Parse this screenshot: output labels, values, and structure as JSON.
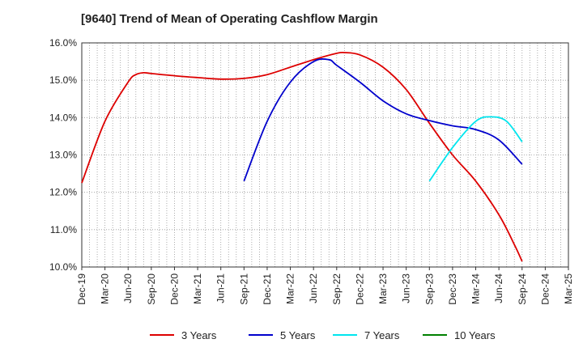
{
  "chart_data": {
    "type": "line",
    "title": "[9640]  Trend of Mean of Operating Cashflow Margin",
    "xlabel": "",
    "ylabel": "",
    "ylim": [
      10.0,
      16.0
    ],
    "y_ticks": [
      "10.0%",
      "11.0%",
      "12.0%",
      "13.0%",
      "14.0%",
      "15.0%",
      "16.0%"
    ],
    "x_ticks": [
      "Dec-19",
      "Mar-20",
      "Jun-20",
      "Sep-20",
      "Dec-20",
      "Mar-21",
      "Jun-21",
      "Sep-21",
      "Dec-21",
      "Mar-22",
      "Jun-22",
      "Sep-22",
      "Dec-22",
      "Mar-23",
      "Jun-23",
      "Sep-23",
      "Dec-23",
      "Mar-24",
      "Jun-24",
      "Sep-24",
      "Dec-24",
      "Mar-25"
    ],
    "grid": true,
    "legend_position": "bottom",
    "series": [
      {
        "name": "3 Years",
        "color": "#dd0000",
        "points": [
          [
            "Dec-19",
            12.25
          ],
          [
            "Mar-20",
            13.9
          ],
          [
            "Jun-20",
            14.95
          ],
          [
            "Jul-20",
            15.15
          ],
          [
            "Aug-20",
            15.2
          ],
          [
            "Sep-20",
            15.18
          ],
          [
            "Dec-20",
            15.12
          ],
          [
            "Mar-21",
            15.07
          ],
          [
            "Jun-21",
            15.03
          ],
          [
            "Sep-21",
            15.05
          ],
          [
            "Dec-21",
            15.15
          ],
          [
            "Mar-22",
            15.35
          ],
          [
            "Jun-22",
            15.55
          ],
          [
            "Sep-22",
            15.72
          ],
          [
            "Oct-22",
            15.74
          ],
          [
            "Dec-22",
            15.68
          ],
          [
            "Mar-23",
            15.35
          ],
          [
            "Jun-23",
            14.75
          ],
          [
            "Sep-23",
            13.85
          ],
          [
            "Dec-23",
            13.0
          ],
          [
            "Mar-24",
            12.3
          ],
          [
            "Jun-24",
            11.4
          ],
          [
            "Aug-24",
            10.6
          ],
          [
            "Sep-24",
            10.15
          ]
        ]
      },
      {
        "name": "5 Years",
        "color": "#0000cc",
        "points": [
          [
            "Sep-21",
            12.3
          ],
          [
            "Dec-21",
            13.9
          ],
          [
            "Mar-22",
            14.95
          ],
          [
            "Jun-22",
            15.5
          ],
          [
            "Aug-22",
            15.55
          ],
          [
            "Sep-22",
            15.4
          ],
          [
            "Dec-22",
            14.95
          ],
          [
            "Mar-23",
            14.45
          ],
          [
            "Jun-23",
            14.1
          ],
          [
            "Sep-23",
            13.92
          ],
          [
            "Dec-23",
            13.78
          ],
          [
            "Mar-24",
            13.68
          ],
          [
            "Jun-24",
            13.4
          ],
          [
            "Sep-24",
            12.75
          ]
        ]
      },
      {
        "name": "7 Years",
        "color": "#00e5ee",
        "points": [
          [
            "Sep-23",
            12.3
          ],
          [
            "Dec-23",
            13.2
          ],
          [
            "Mar-24",
            13.9
          ],
          [
            "May-24",
            14.02
          ],
          [
            "Jul-24",
            13.9
          ],
          [
            "Sep-24",
            13.35
          ]
        ]
      },
      {
        "name": "10 Years",
        "color": "#008000",
        "points": []
      }
    ]
  }
}
